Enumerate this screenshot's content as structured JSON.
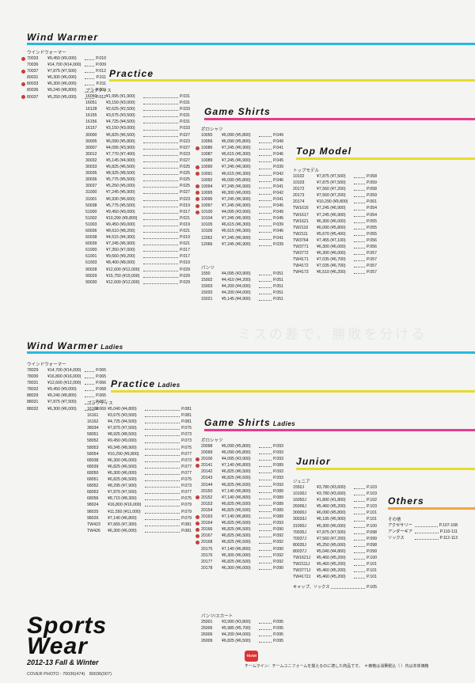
{
  "colors": {
    "cyan": "#27b9de",
    "yellow": "#e6dc2e",
    "magenta": "#e53d8e",
    "orange": "#f0a63a",
    "dot_red": "#c4403a"
  },
  "wind_warmer": {
    "title": "Wind Warmer",
    "label": "ウインドウォーマー",
    "items": [
      {
        "code": "70033",
        "price": "¥9,450 (¥9,000)",
        "page": "P.010",
        "mark": true
      },
      {
        "code": "70036",
        "price": "¥14,700 (¥14,000)",
        "page": "P.009",
        "mark": false
      },
      {
        "code": "70037",
        "price": "¥7,875 (¥7,500)",
        "page": "P.012",
        "mark": true
      },
      {
        "code": "80031",
        "price": "¥6,300 (¥6,000)",
        "page": "P.011",
        "mark": false
      },
      {
        "code": "80033",
        "price": "¥6,300 (¥6,000)",
        "page": "P.011",
        "mark": true
      },
      {
        "code": "80036",
        "price": "¥9,240 (¥8,800)",
        "page": "P.009",
        "mark": false
      },
      {
        "code": "80037",
        "price": "¥5,250 (¥5,000)",
        "page": "P.012",
        "mark": true
      }
    ]
  },
  "practice": {
    "title": "Practice",
    "label": "プラクティス",
    "items": [
      {
        "code": "16050",
        "price": "¥1,995 (¥1,900)",
        "page": "P.031"
      },
      {
        "code": "16051",
        "price": "¥3,150 (¥3,000)",
        "page": "P.031"
      },
      {
        "code": "16128",
        "price": "¥2,625 (¥2,500)",
        "page": "P.033"
      },
      {
        "code": "16155",
        "price": "¥3,675 (¥3,500)",
        "page": "P.031"
      },
      {
        "code": "16156",
        "price": "¥4,725 (¥4,500)",
        "page": "P.031"
      },
      {
        "code": "16157",
        "price": "¥3,150 (¥3,000)",
        "page": "P.033"
      },
      {
        "code": "30000",
        "price": "¥6,825 (¥6,500)",
        "page": "P.027"
      },
      {
        "code": "30005",
        "price": "¥6,090 (¥5,800)",
        "page": "P.023"
      },
      {
        "code": "30007",
        "price": "¥4,095 (¥3,900)",
        "page": "P.027"
      },
      {
        "code": "30012",
        "price": "¥7,770 (¥7,400)",
        "page": "P.023"
      },
      {
        "code": "30032",
        "price": "¥5,145 (¥4,900)",
        "page": "P.027"
      },
      {
        "code": "30033",
        "price": "¥6,825 (¥6,500)",
        "page": "P.025"
      },
      {
        "code": "30035",
        "price": "¥8,925 (¥8,500)",
        "page": "P.025"
      },
      {
        "code": "30036",
        "price": "¥5,775 (¥5,500)",
        "page": "P.025"
      },
      {
        "code": "30037",
        "price": "¥5,250 (¥5,000)",
        "page": "P.025"
      },
      {
        "code": "31000",
        "price": "¥7,245 (¥6,900)",
        "page": "P.027"
      },
      {
        "code": "31001",
        "price": "¥6,930 (¥6,600)",
        "page": "P.023"
      },
      {
        "code": "50038",
        "price": "¥5,775 (¥5,500)",
        "page": "P.019"
      },
      {
        "code": "51000",
        "price": "¥9,450 (¥9,000)",
        "page": "P.017"
      },
      {
        "code": "51002",
        "price": "¥10,290 (¥9,800)",
        "page": "P.021"
      },
      {
        "code": "51003",
        "price": "¥9,450 (¥9,000)",
        "page": "P.019"
      },
      {
        "code": "60036",
        "price": "¥8,610 (¥8,200)",
        "page": "P.021"
      },
      {
        "code": "60038",
        "price": "¥4,515 (¥4,300)",
        "page": "P.019"
      },
      {
        "code": "60039",
        "price": "¥7,245 (¥6,900)",
        "page": "P.021"
      },
      {
        "code": "61000",
        "price": "¥7,350 (¥7,000)",
        "page": "P.017"
      },
      {
        "code": "61001",
        "price": "¥9,660 (¥9,200)",
        "page": "P.017"
      },
      {
        "code": "61003",
        "price": "¥8,400 (¥8,000)",
        "page": "P.019"
      },
      {
        "code": "90028",
        "price": "¥12,600 (¥12,000)",
        "page": "P.029"
      },
      {
        "code": "90029",
        "price": "¥15,750 (¥15,000)",
        "page": "P.029"
      },
      {
        "code": "90030",
        "price": "¥12,600 (¥12,000)",
        "page": "P.029"
      }
    ]
  },
  "game_shirts": {
    "title": "Game Shirts",
    "label_polo": "ポロシャツ",
    "label_pants": "パンツ",
    "polo": [
      {
        "code": "10055",
        "price": "¥6,090 (¥5,800)",
        "page": "P.049",
        "mark": false
      },
      {
        "code": "10056",
        "price": "¥6,090 (¥5,800)",
        "page": "P.049",
        "mark": false
      },
      {
        "code": "10086",
        "price": "¥7,245 (¥6,900)",
        "page": "P.041",
        "mark": true
      },
      {
        "code": "10087",
        "price": "¥6,615 (¥6,300)",
        "page": "P.046",
        "mark": false
      },
      {
        "code": "10089",
        "price": "¥7,245 (¥6,900)",
        "page": "P.045",
        "mark": false
      },
      {
        "code": "10090",
        "price": "¥7,245 (¥6,900)",
        "page": "P.039",
        "mark": true
      },
      {
        "code": "10091",
        "price": "¥6,615 (¥6,300)",
        "page": "P.042",
        "mark": true
      },
      {
        "code": "10092",
        "price": "¥6,090 (¥5,800)",
        "page": "P.046",
        "mark": false
      },
      {
        "code": "10094",
        "price": "¥7,245 (¥6,900)",
        "page": "P.041",
        "mark": true
      },
      {
        "code": "10095",
        "price": "¥6,300 (¥6,000)",
        "page": "P.042",
        "mark": true
      },
      {
        "code": "10096",
        "price": "¥7,245 (¥6,900)",
        "page": "P.041",
        "mark": true
      },
      {
        "code": "10097",
        "price": "¥7,245 (¥6,900)",
        "page": "P.045",
        "mark": true
      },
      {
        "code": "10100",
        "price": "¥4,095 (¥3,900)",
        "page": "P.049",
        "mark": true
      },
      {
        "code": "10104",
        "price": "¥7,245 (¥6,900)",
        "page": "P.045",
        "mark": false
      },
      {
        "code": "10105",
        "price": "¥6,615 (¥6,300)",
        "page": "P.039",
        "mark": false
      },
      {
        "code": "10106",
        "price": "¥6,615 (¥6,300)",
        "page": "P.046",
        "mark": false
      },
      {
        "code": "12062",
        "price": "¥7,245 (¥6,900)",
        "page": "P.041",
        "mark": false
      },
      {
        "code": "12066",
        "price": "¥7,245 (¥6,900)",
        "page": "P.039",
        "mark": false
      }
    ],
    "pants": [
      {
        "code": "1550",
        "price": "¥4,095 (¥3,900)",
        "page": "P.051"
      },
      {
        "code": "15002",
        "price": "¥4,410 (¥4,200)",
        "page": "P.051"
      },
      {
        "code": "15003",
        "price": "¥4,200 (¥4,000)",
        "page": "P.051"
      },
      {
        "code": "15020",
        "price": "¥4,200 (¥4,000)",
        "page": "P.051"
      },
      {
        "code": "15021",
        "price": "¥5,145 (¥4,900)",
        "page": "P.051"
      }
    ]
  },
  "top_model": {
    "title": "Top Model",
    "label": "トップモデル",
    "items": [
      {
        "code": "10102",
        "price": "¥7,875 (¥7,500)",
        "page": "P.058"
      },
      {
        "code": "10103",
        "price": "¥7,875 (¥7,500)",
        "page": "P.059"
      },
      {
        "code": "20172",
        "price": "¥7,560 (¥7,200)",
        "page": "P.058"
      },
      {
        "code": "20173",
        "price": "¥7,560 (¥7,200)",
        "page": "P.059"
      },
      {
        "code": "20174",
        "price": "¥10,290 (¥9,800)",
        "page": "P.061"
      },
      {
        "code": "TW1616",
        "price": "¥7,245 (¥6,900)",
        "page": "P.054"
      },
      {
        "code": "TW1617",
        "price": "¥7,245 (¥6,900)",
        "page": "P.054"
      },
      {
        "code": "TW1621",
        "price": "¥6,300 (¥6,000)",
        "page": "P.055"
      },
      {
        "code": "TW2110",
        "price": "¥6,090 (¥5,800)",
        "page": "P.055"
      },
      {
        "code": "TW2111",
        "price": "¥5,670 (¥5,400)",
        "page": "P.055"
      },
      {
        "code": "TW3764",
        "price": "¥7,455 (¥7,100)",
        "page": "P.056"
      },
      {
        "code": "TW3771",
        "price": "¥6,300 (¥6,000)",
        "page": "P.056"
      },
      {
        "code": "TW3772",
        "price": "¥6,300 (¥6,000)",
        "page": "P.057"
      },
      {
        "code": "TW4171",
        "price": "¥7,035 (¥6,700)",
        "page": "P.057"
      },
      {
        "code": "TW4172",
        "price": "¥7,035 (¥6,700)",
        "page": "P.057"
      },
      {
        "code": "TW4173",
        "price": "¥6,510 (¥6,200)",
        "page": "P.057"
      }
    ]
  },
  "watermark": "ミスの差で、勝敗を分ける",
  "wind_warmer_ladies": {
    "title": "Wind Warmer",
    "sub": "Ladies",
    "label": "ウインドウォーマー",
    "items": [
      {
        "code": "78029",
        "price": "¥14,700 (¥14,000)",
        "page": "P.065"
      },
      {
        "code": "78030",
        "price": "¥16,800 (¥16,000)",
        "page": "P.065"
      },
      {
        "code": "78031",
        "price": "¥12,600 (¥12,000)",
        "page": "P.066"
      },
      {
        "code": "78032",
        "price": "¥9,450 (¥9,000)",
        "page": "P.068"
      },
      {
        "code": "88029",
        "price": "¥9,240 (¥8,800)",
        "page": "P.065"
      },
      {
        "code": "88031",
        "price": "¥7,875 (¥7,500)",
        "page": "P.067"
      },
      {
        "code": "88032",
        "price": "¥6,300 (¥6,000)",
        "page": "P.069"
      }
    ]
  },
  "practice_ladies": {
    "title": "Practice",
    "sub": "Ladies",
    "label": "プラクティス",
    "items": [
      {
        "code": "16160",
        "price": "¥5,040 (¥4,800)",
        "page": "P.081"
      },
      {
        "code": "16161",
        "price": "¥3,675 (¥3,500)",
        "page": "P.081"
      },
      {
        "code": "16162",
        "price": "¥4,725 (¥4,500)",
        "page": "P.081"
      },
      {
        "code": "38034",
        "price": "¥7,875 (¥7,500)",
        "page": "P.075"
      },
      {
        "code": "58051",
        "price": "¥8,925 (¥8,500)",
        "page": "P.073"
      },
      {
        "code": "58052",
        "price": "¥9,450 (¥9,000)",
        "page": "P.073"
      },
      {
        "code": "58053",
        "price": "¥9,345 (¥8,900)",
        "page": "P.075"
      },
      {
        "code": "58054",
        "price": "¥10,290 (¥9,800)",
        "page": "P.077"
      },
      {
        "code": "68038",
        "price": "¥6,300 (¥6,000)",
        "page": "P.073"
      },
      {
        "code": "68039",
        "price": "¥6,825 (¥6,500)",
        "page": "P.077"
      },
      {
        "code": "68050",
        "price": "¥6,300 (¥6,000)",
        "page": "P.077"
      },
      {
        "code": "68051",
        "price": "¥6,825 (¥6,500)",
        "page": "P.075"
      },
      {
        "code": "68052",
        "price": "¥8,295 (¥7,900)",
        "page": "P.073"
      },
      {
        "code": "68053",
        "price": "¥7,875 (¥7,500)",
        "page": "P.077"
      },
      {
        "code": "68056",
        "price": "¥8,715 (¥8,300)",
        "page": "P.075"
      },
      {
        "code": "98024",
        "price": "¥16,800 (¥16,000)",
        "page": "P.079"
      },
      {
        "code": "98025",
        "price": "¥11,550 (¥11,000)",
        "page": "P.079"
      },
      {
        "code": "98026",
        "price": "¥7,140 (¥6,800)",
        "page": "P.079"
      },
      {
        "code": "TW423",
        "price": "¥7,665 (¥7,300)",
        "page": "P.081"
      },
      {
        "code": "TW426",
        "price": "¥6,300 (¥6,000)",
        "page": "P.081"
      }
    ]
  },
  "game_shirts_ladies": {
    "title": "Game Shirts",
    "sub": "Ladies",
    "label_polo": "ポロシャツ",
    "label_pants": "パンツ/スカート",
    "polo": [
      {
        "code": "20098",
        "price": "¥6,090 (¥5,800)",
        "page": "P.093",
        "mark": false
      },
      {
        "code": "20099",
        "price": "¥6,090 (¥5,800)",
        "page": "P.093",
        "mark": false
      },
      {
        "code": "20100",
        "price": "¥4,095 (¥3,900)",
        "page": "P.093",
        "mark": true
      },
      {
        "code": "20141",
        "price": "¥7,140 (¥6,800)",
        "page": "P.089",
        "mark": true
      },
      {
        "code": "20142",
        "price": "¥6,825 (¥6,500)",
        "page": "P.093",
        "mark": false
      },
      {
        "code": "20143",
        "price": "¥6,825 (¥6,500)",
        "page": "P.093",
        "mark": false
      },
      {
        "code": "20144",
        "price": "¥6,825 (¥6,500)",
        "page": "P.093",
        "mark": false
      },
      {
        "code": "20150",
        "price": "¥7,140 (¥6,800)",
        "page": "P.089",
        "mark": false
      },
      {
        "code": "20152",
        "price": "¥7,140 (¥6,800)",
        "page": "P.089",
        "mark": true
      },
      {
        "code": "20153",
        "price": "¥6,825 (¥6,500)",
        "page": "P.089",
        "mark": false
      },
      {
        "code": "20154",
        "price": "¥6,825 (¥6,500)",
        "page": "P.089",
        "mark": false
      },
      {
        "code": "20163",
        "price": "¥7,140 (¥6,800)",
        "page": "P.089",
        "mark": true
      },
      {
        "code": "20164",
        "price": "¥6,825 (¥6,500)",
        "page": "P.093",
        "mark": true
      },
      {
        "code": "20166",
        "price": "¥6,825 (¥6,500)",
        "page": "P.090",
        "mark": true
      },
      {
        "code": "20167",
        "price": "¥6,825 (¥6,500)",
        "page": "P.092",
        "mark": true
      },
      {
        "code": "20168",
        "price": "¥6,825 (¥6,500)",
        "page": "P.092",
        "mark": true
      },
      {
        "code": "20175",
        "price": "¥7,140 (¥6,800)",
        "page": "P.090",
        "mark": false
      },
      {
        "code": "20176",
        "price": "¥6,300 (¥6,000)",
        "page": "P.092",
        "mark": false
      },
      {
        "code": "20177",
        "price": "¥6,825 (¥6,500)",
        "page": "P.092",
        "mark": false
      },
      {
        "code": "20178",
        "price": "¥6,300 (¥6,000)",
        "page": "P.090",
        "mark": false
      }
    ],
    "pants": [
      {
        "code": "25001",
        "price": "¥3,990 (¥3,800)",
        "page": "P.095"
      },
      {
        "code": "25006",
        "price": "¥5,985 (¥5,700)",
        "page": "P.095"
      },
      {
        "code": "26006",
        "price": "¥4,200 (¥4,000)",
        "page": "P.095"
      },
      {
        "code": "26009",
        "price": "¥6,825 (¥6,500)",
        "page": "P.095"
      }
    ]
  },
  "junior": {
    "title": "Junior",
    "label": "ジュニア",
    "footer": "キャップ、ソックス",
    "footer_page": "P.105",
    "items": [
      {
        "code": "1550J",
        "price": "¥3,780 (¥3,600)",
        "page": "P.103"
      },
      {
        "code": "10100J",
        "price": "¥3,780 (¥3,600)",
        "page": "P.103"
      },
      {
        "code": "16050J",
        "price": "¥1,890 (¥1,800)",
        "page": "P.102"
      },
      {
        "code": "26006J",
        "price": "¥5,460 (¥5,200)",
        "page": "P.103"
      },
      {
        "code": "30000J",
        "price": "¥6,090 (¥5,800)",
        "page": "P.101"
      },
      {
        "code": "30033J",
        "price": "¥6,195 (¥5,900)",
        "page": "P.101"
      },
      {
        "code": "31000J",
        "price": "¥6,300 (¥6,000)",
        "page": "P.100"
      },
      {
        "code": "70035J",
        "price": "¥7,875 (¥7,500)",
        "page": "P.098"
      },
      {
        "code": "70037J",
        "price": "¥7,560 (¥7,200)",
        "page": "P.099"
      },
      {
        "code": "80035J",
        "price": "¥5,250 (¥5,000)",
        "page": "P.098"
      },
      {
        "code": "80037J",
        "price": "¥5,040 (¥4,800)",
        "page": "P.099"
      },
      {
        "code": "TW1621J",
        "price": "¥5,460 (¥5,200)",
        "page": "P.100"
      },
      {
        "code": "TW2111J",
        "price": "¥5,460 (¥5,200)",
        "page": "P.101"
      },
      {
        "code": "TW3771J",
        "price": "¥5,460 (¥5,200)",
        "page": "P.101"
      },
      {
        "code": "TW4172J",
        "price": "¥5,460 (¥5,200)",
        "page": "P.101"
      }
    ]
  },
  "others": {
    "title": "Others",
    "label": "その他",
    "items": [
      {
        "code": "アクセサリー",
        "page": "P.107-108"
      },
      {
        "code": "アンダーギア",
        "page": "P.110-111"
      },
      {
        "code": "ソックス",
        "page": "P.112-113"
      }
    ]
  },
  "cover": {
    "title_line1": "Sports",
    "title_line2": "Wear",
    "season": "2012-13 Fall & Winter",
    "cover_photo": "COVER PHOTO : 70036(474)　80036(007)"
  },
  "footer": {
    "team_logo": "TEAM",
    "note": "チームライン：チームユニフォームを揃えるのに適した商品です。　＊価格は消費税込（ ）内は本体価格"
  }
}
